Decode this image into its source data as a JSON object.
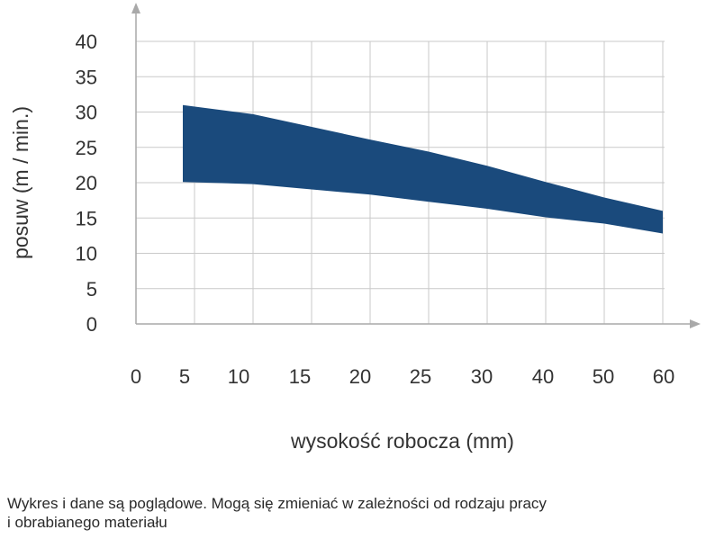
{
  "chart_data": {
    "type": "area",
    "title": "",
    "xlabel": "wysokość robocza (mm)",
    "ylabel": "posuw (m / min.)",
    "xticks": [
      "0",
      "5",
      "10",
      "15",
      "20",
      "25",
      "30",
      "40",
      "50",
      "60"
    ],
    "yticks": [
      "0",
      "5",
      "10",
      "15",
      "20",
      "25",
      "30",
      "35",
      "40"
    ],
    "ylim": [
      0,
      40
    ],
    "grid": true,
    "band": {
      "fill": "#1a4a7c",
      "upper": [
        {
          "x": "4",
          "y": 31
        },
        {
          "x": "10",
          "y": 29.7
        },
        {
          "x": "20",
          "y": 26.1
        },
        {
          "x": "25",
          "y": 24.4
        },
        {
          "x": "30",
          "y": 22.4
        },
        {
          "x": "40",
          "y": 20.1
        },
        {
          "x": "50",
          "y": 17.9
        },
        {
          "x": "60",
          "y": 16
        }
      ],
      "lower": [
        {
          "x": "60",
          "y": 12.8
        },
        {
          "x": "50",
          "y": 14.2
        },
        {
          "x": "40",
          "y": 15.1
        },
        {
          "x": "30",
          "y": 16.3
        },
        {
          "x": "25",
          "y": 17.3
        },
        {
          "x": "20",
          "y": 18.3
        },
        {
          "x": "10",
          "y": 19.8
        },
        {
          "x": "4",
          "y": 20.1
        }
      ]
    },
    "colors": {
      "axis": "#a9a9a9",
      "grid": "#c9c9c9",
      "tick_text": "#333333",
      "band": "#1a4a7c"
    }
  },
  "footer": {
    "note": "Wykres i dane są poglądowe. Mogą się zmieniać w zależności od rodzaju pracy\ni obrabianego materiału"
  }
}
